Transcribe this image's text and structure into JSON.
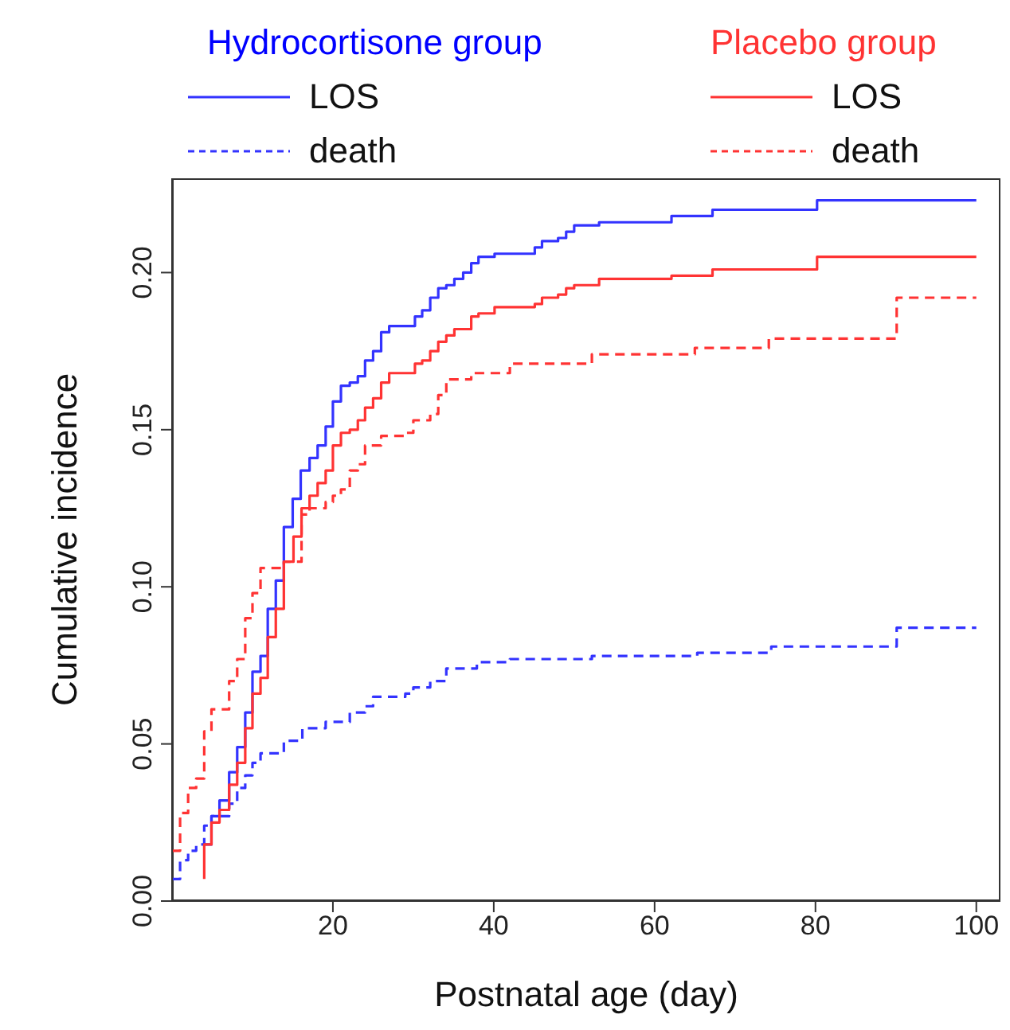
{
  "chart_data": {
    "type": "step",
    "xlabel": "Postnatal age (day)",
    "ylabel": "Cumulative incidence",
    "xlim": [
      0,
      103
    ],
    "xticks": [
      20,
      40,
      60,
      80,
      100
    ],
    "ylim": [
      0,
      0.23
    ],
    "yticks": [
      {
        "value": 0,
        "label": "0.00"
      },
      {
        "value": 0.05,
        "label": "0.05"
      },
      {
        "value": 0.1,
        "label": "0.10"
      },
      {
        "value": 0.15,
        "label": "0.15"
      },
      {
        "value": 0.2,
        "label": "0.20"
      }
    ],
    "legend": "top",
    "marker": "none",
    "annotations": [
      "Hydrocortisone group",
      "Placebo group"
    ],
    "series": [
      {
        "name": "LOS",
        "color": "#3333ff",
        "line_style": "solid",
        "x": [
          4,
          4.9,
          5.9,
          7.1,
          8.1,
          9.1,
          10,
          11,
          11.9,
          12.9,
          13.9,
          15,
          16,
          17.1,
          18.1,
          19.1,
          20,
          21,
          22.1,
          23.1,
          24,
          25,
          26,
          27,
          30.2,
          31.1,
          32.1,
          33.1,
          34.1,
          35.1,
          36.2,
          37.2,
          38.1,
          40.1,
          45.1,
          46,
          48,
          49,
          50,
          53.1,
          62.1,
          67.2,
          80.2,
          100
        ],
        "values": [
          0.018,
          0.027,
          0.032,
          0.041,
          0.049,
          0.06,
          0.073,
          0.078,
          0.093,
          0.102,
          0.119,
          0.128,
          0.137,
          0.141,
          0.145,
          0.151,
          0.159,
          0.164,
          0.165,
          0.167,
          0.172,
          0.175,
          0.181,
          0.183,
          0.186,
          0.188,
          0.192,
          0.195,
          0.196,
          0.198,
          0.2,
          0.203,
          0.205,
          0.206,
          0.208,
          0.21,
          0.211,
          0.213,
          0.215,
          0.216,
          0.218,
          0.22,
          0.223,
          0.223
        ]
      },
      {
        "name": "death",
        "color": "#3333ff",
        "line_style": "dashed",
        "x": [
          0,
          1,
          2,
          3,
          4,
          4.9,
          7.1,
          8.1,
          9.1,
          10,
          11,
          13.9,
          16.2,
          19.1,
          22.1,
          24,
          25,
          29,
          30,
          32.1,
          34.1,
          37.9,
          42,
          52.2,
          65.3,
          74.5,
          90.1,
          100
        ],
        "values": [
          0.007,
          0.013,
          0.016,
          0.018,
          0.024,
          0.027,
          0.031,
          0.036,
          0.04,
          0.044,
          0.047,
          0.051,
          0.055,
          0.057,
          0.06,
          0.062,
          0.065,
          0.066,
          0.068,
          0.07,
          0.074,
          0.076,
          0.077,
          0.078,
          0.079,
          0.081,
          0.087,
          0.087
        ]
      },
      {
        "name": "LOS",
        "color": "#ff3333",
        "line_style": "solid",
        "x": [
          4,
          4,
          4.9,
          5.9,
          7.1,
          8.1,
          9.1,
          10,
          11,
          11.9,
          12.9,
          13.9,
          15.1,
          16.1,
          17.1,
          18.1,
          19.1,
          20,
          21,
          22.1,
          23.1,
          24,
          25,
          26,
          27,
          30.2,
          31.1,
          32.1,
          33.1,
          34.1,
          35.1,
          36.2,
          37.2,
          38.1,
          40.1,
          45.1,
          46,
          48,
          49,
          50,
          53.1,
          62.1,
          67.2,
          80.2,
          100
        ],
        "values": [
          0.007,
          0.018,
          0.025,
          0.029,
          0.037,
          0.044,
          0.055,
          0.066,
          0.071,
          0.084,
          0.093,
          0.108,
          0.116,
          0.125,
          0.129,
          0.133,
          0.137,
          0.145,
          0.149,
          0.15,
          0.153,
          0.157,
          0.16,
          0.165,
          0.168,
          0.171,
          0.172,
          0.175,
          0.178,
          0.18,
          0.182,
          0.182,
          0.186,
          0.187,
          0.189,
          0.19,
          0.192,
          0.193,
          0.195,
          0.196,
          0.198,
          0.199,
          0.201,
          0.205,
          0.205
        ]
      },
      {
        "name": "death",
        "color": "#ff3333",
        "line_style": "dashed",
        "x": [
          0,
          1,
          2,
          3,
          4,
          4.9,
          7.1,
          8.1,
          9.1,
          10,
          11,
          13.9,
          16.1,
          17.1,
          19.1,
          20,
          21,
          22.1,
          23.1,
          24,
          26,
          29,
          30,
          32.1,
          33.1,
          34.1,
          37.2,
          42,
          52.2,
          65,
          74.2,
          90.1,
          100
        ],
        "values": [
          0.016,
          0.028,
          0.036,
          0.039,
          0.054,
          0.061,
          0.07,
          0.077,
          0.09,
          0.098,
          0.106,
          0.108,
          0.123,
          0.125,
          0.127,
          0.129,
          0.131,
          0.137,
          0.139,
          0.145,
          0.148,
          0.149,
          0.153,
          0.155,
          0.161,
          0.166,
          0.168,
          0.171,
          0.174,
          0.176,
          0.179,
          0.192,
          0.192
        ]
      }
    ]
  }
}
